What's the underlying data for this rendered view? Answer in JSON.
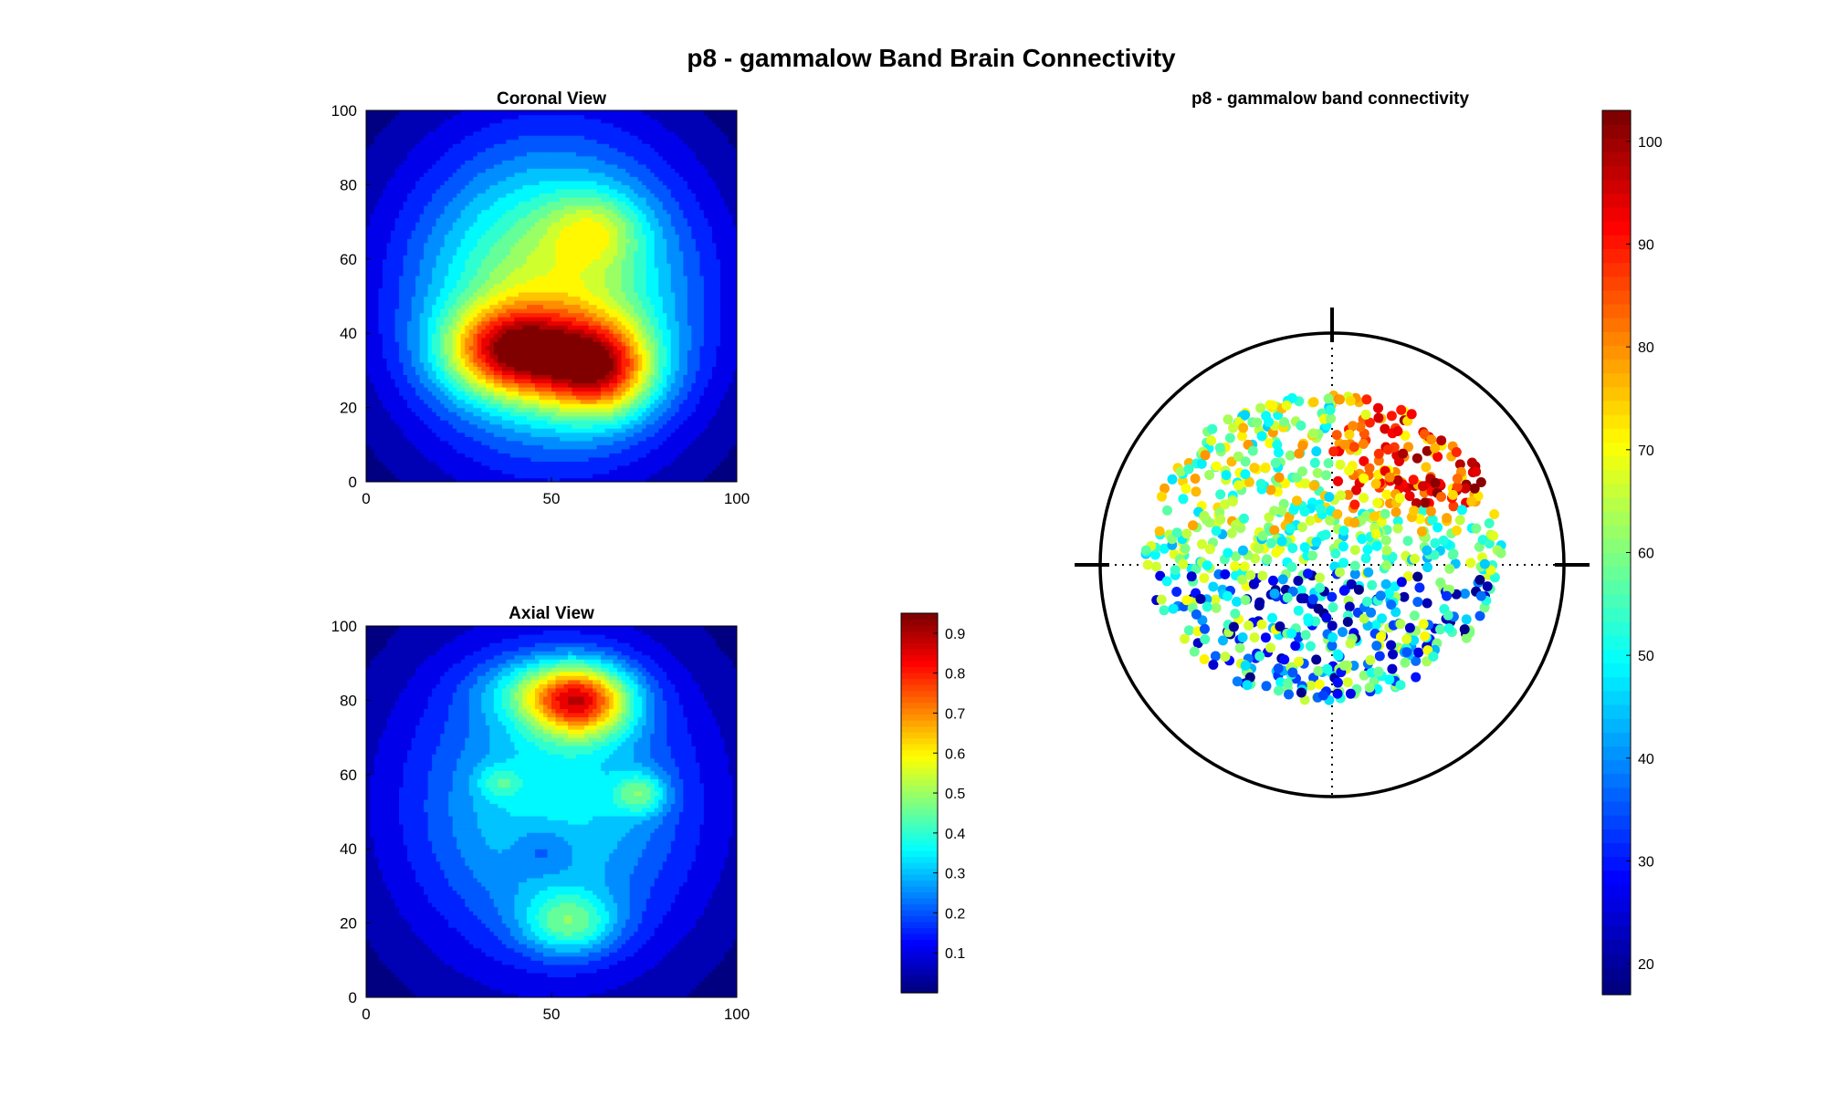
{
  "figure": {
    "title": "p8 - gammalow Band Brain Connectivity"
  },
  "chart_data": [
    {
      "id": "coronal",
      "type": "heatmap",
      "title": "Coronal View",
      "xlim": [
        0,
        100
      ],
      "ylim": [
        0,
        100
      ],
      "xticks": [
        "0",
        "50",
        "100"
      ],
      "yticks": [
        "0",
        "20",
        "40",
        "60",
        "80",
        "100"
      ],
      "colormap": "jet",
      "clim": [
        0,
        0.95
      ],
      "contour_levels": 20,
      "blobs": [
        {
          "x": 50,
          "y": 50,
          "sigma_x": 28,
          "sigma_y": 30,
          "amplitude": 0.55
        },
        {
          "x": 38,
          "y": 36,
          "sigma_x": 12,
          "sigma_y": 8,
          "amplitude": 0.38
        },
        {
          "x": 64,
          "y": 30,
          "sigma_x": 10,
          "sigma_y": 9,
          "amplitude": 0.4
        },
        {
          "x": 62,
          "y": 68,
          "sigma_x": 9,
          "sigma_y": 7,
          "amplitude": 0.18
        },
        {
          "x": 50,
          "y": 32,
          "sigma_x": 16,
          "sigma_y": 9,
          "amplitude": 0.2
        }
      ]
    },
    {
      "id": "axial",
      "type": "heatmap",
      "title": "Axial View",
      "xlim": [
        0,
        100
      ],
      "ylim": [
        0,
        100
      ],
      "xticks": [
        "0",
        "50",
        "100"
      ],
      "yticks": [
        "0",
        "20",
        "40",
        "60",
        "80",
        "100"
      ],
      "colormap": "jet",
      "clim": [
        0,
        0.95
      ],
      "contour_levels": 20,
      "blobs": [
        {
          "x": 50,
          "y": 52,
          "sigma_x": 30,
          "sigma_y": 32,
          "amplitude": 0.36
        },
        {
          "x": 58,
          "y": 80,
          "sigma_x": 10,
          "sigma_y": 7,
          "amplitude": 0.55
        },
        {
          "x": 45,
          "y": 83,
          "sigma_x": 12,
          "sigma_y": 6,
          "amplitude": 0.15
        },
        {
          "x": 74,
          "y": 55,
          "sigma_x": 5,
          "sigma_y": 4,
          "amplitude": 0.22
        },
        {
          "x": 36,
          "y": 58,
          "sigma_x": 4,
          "sigma_y": 3,
          "amplitude": 0.12
        },
        {
          "x": 55,
          "y": 20,
          "sigma_x": 9,
          "sigma_y": 6,
          "amplitude": 0.26
        },
        {
          "x": 48,
          "y": 40,
          "sigma_x": 6,
          "sigma_y": 5,
          "amplitude": -0.1
        }
      ]
    },
    {
      "id": "heatmap-colorbar",
      "type": "colorbar",
      "colormap": "jet",
      "range": [
        0,
        0.95
      ],
      "ticks": [
        "0.1",
        "0.2",
        "0.3",
        "0.4",
        "0.5",
        "0.6",
        "0.7",
        "0.8",
        "0.9"
      ]
    },
    {
      "id": "connectivity",
      "type": "scatter",
      "title": "p8 - gammalow band connectivity",
      "colormap": "jet",
      "clim": [
        17,
        103
      ],
      "point_count": 900,
      "colorbar_ticks": [
        "20",
        "30",
        "40",
        "50",
        "60",
        "70",
        "80",
        "90",
        "100"
      ],
      "head_outline": true,
      "region_values": [
        {
          "region": "upper-right",
          "range": [
            75,
            103
          ]
        },
        {
          "region": "upper-left",
          "range": [
            45,
            80
          ]
        },
        {
          "region": "middle",
          "range": [
            45,
            70
          ]
        },
        {
          "region": "lower",
          "range": [
            17,
            70
          ]
        }
      ]
    }
  ]
}
